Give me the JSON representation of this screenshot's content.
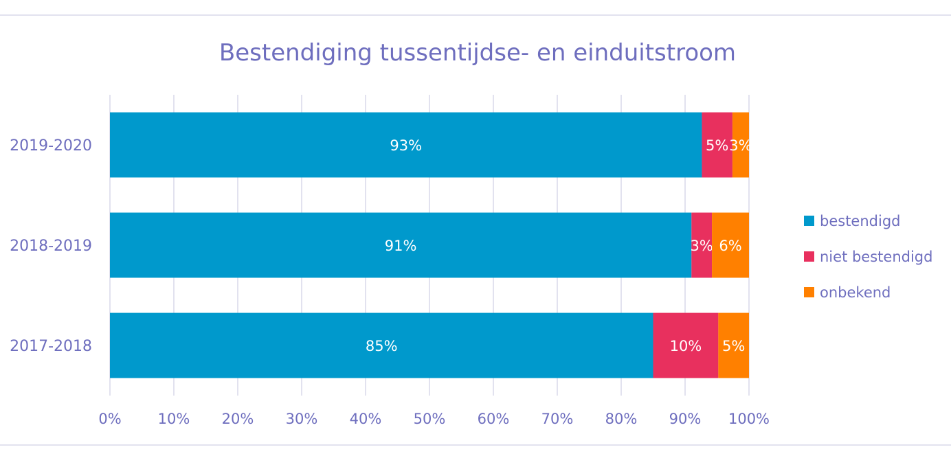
{
  "chart_data": {
    "type": "bar",
    "orientation": "horizontal",
    "stacked": true,
    "percent_stacked": true,
    "title": "Bestendiging tussentijdse- en einduitstroom",
    "categories": [
      "2019-2020",
      "2018-2019",
      "2017-2018"
    ],
    "series": [
      {
        "name": "bestendigd",
        "color": "#0099CC",
        "values": [
          93,
          91,
          85
        ],
        "labels": [
          "93%",
          "91%",
          "85%"
        ]
      },
      {
        "name": "niet bestendigd",
        "color": "#E8305E",
        "values": [
          4.8,
          3.2,
          10.2
        ],
        "labels": [
          "5%",
          "3%",
          "10%"
        ]
      },
      {
        "name": "onbekend",
        "color": "#FF8000",
        "values": [
          2.6,
          5.8,
          4.8
        ],
        "labels": [
          "3%",
          "6%",
          "5%"
        ]
      }
    ],
    "xlim": [
      0,
      100
    ],
    "xticks": [
      "0%",
      "10%",
      "20%",
      "30%",
      "40%",
      "50%",
      "60%",
      "70%",
      "80%",
      "90%",
      "100%"
    ],
    "grid": "vertical",
    "legend_position": "right",
    "label_color": "#ffffff",
    "text_color": "#6E6EBE"
  }
}
